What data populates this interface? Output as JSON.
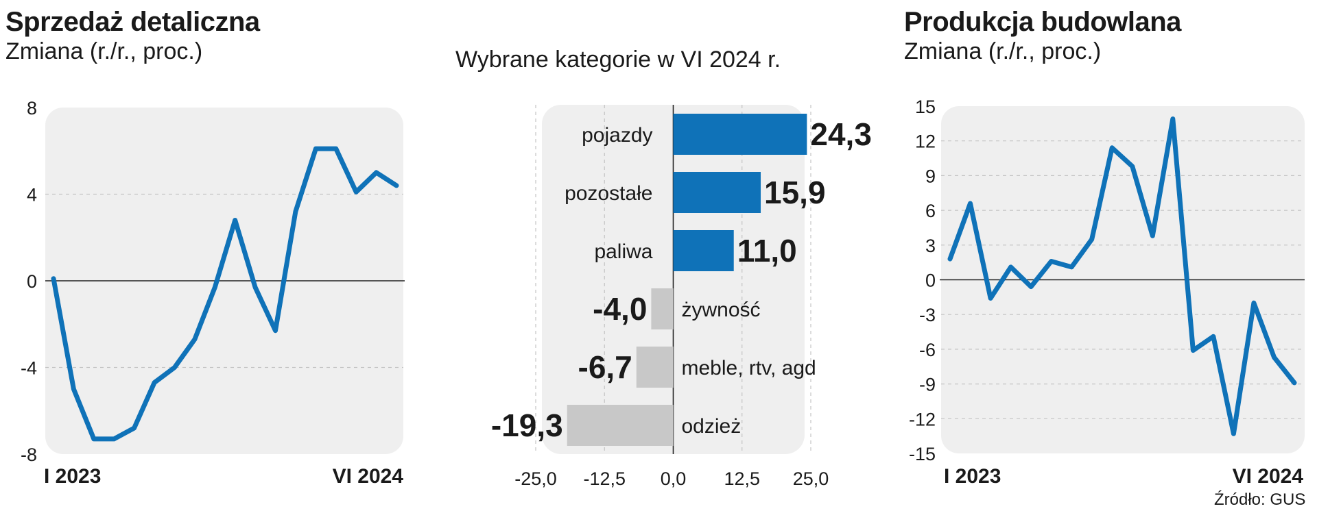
{
  "left_panel": {
    "title": "Sprzedaż detaliczna",
    "subtitle": "Zmiana (r./r., proc.)"
  },
  "middle_panel": {
    "subtitle": "Wybrane kategorie w VI 2024 r."
  },
  "right_panel": {
    "title": "Produkcja budowlana",
    "subtitle": "Zmiana (r./r., proc.)"
  },
  "source": "Źródło: GUS",
  "colors": {
    "accent": "#0f72b8",
    "negative_bar": "#c8c8c8",
    "plot_bg": "#efefef",
    "text": "#1a1a1a"
  },
  "chart_data": [
    {
      "type": "line",
      "title": "Sprzedaż detaliczna",
      "ylabel": "Zmiana (r./r., proc.)",
      "x_tick_labels": [
        "I 2023",
        "VI 2024"
      ],
      "yticks": [
        8,
        4,
        0,
        -4,
        -8
      ],
      "ylim": [
        -8,
        8
      ],
      "grid": true,
      "series": [
        {
          "values": [
            0.1,
            -5.0,
            -7.3,
            -7.3,
            -6.8,
            -4.7,
            -4.0,
            -2.7,
            -0.3,
            2.8,
            -0.3,
            -2.3,
            3.2,
            6.1,
            6.1,
            4.1,
            5.0,
            4.4
          ]
        }
      ]
    },
    {
      "type": "bar",
      "title": "Wybrane kategorie w VI 2024 r.",
      "orientation": "horizontal",
      "categories": [
        "pojazdy",
        "pozostałe",
        "paliwa",
        "żywność",
        "meble, rtv, agd",
        "odzież"
      ],
      "values": [
        24.3,
        15.9,
        11.0,
        -4.0,
        -6.7,
        -19.3
      ],
      "value_labels": [
        "24,3",
        "15,9",
        "11,0",
        "-4,0",
        "-6,7",
        "-19,3"
      ],
      "xticks": [
        -25.0,
        -12.5,
        0.0,
        12.5,
        25.0
      ],
      "xtick_labels": [
        "-25,0",
        "-12,5",
        "0,0",
        "12,5",
        "25,0"
      ],
      "xlim": [
        -25,
        25
      ]
    },
    {
      "type": "line",
      "title": "Produkcja budowlana",
      "ylabel": "Zmiana (r./r., proc.)",
      "x_tick_labels": [
        "I 2023",
        "VI 2024"
      ],
      "yticks": [
        15,
        12,
        9,
        6,
        3,
        0,
        -3,
        -6,
        -9,
        -12,
        -15
      ],
      "ylim": [
        -15,
        15
      ],
      "grid": true,
      "series": [
        {
          "values": [
            1.8,
            6.6,
            -1.6,
            1.1,
            -0.6,
            1.6,
            1.1,
            3.5,
            11.4,
            9.8,
            3.8,
            13.9,
            -6.1,
            -4.9,
            -13.3,
            -2.0,
            -6.7,
            -8.9
          ]
        }
      ]
    }
  ]
}
